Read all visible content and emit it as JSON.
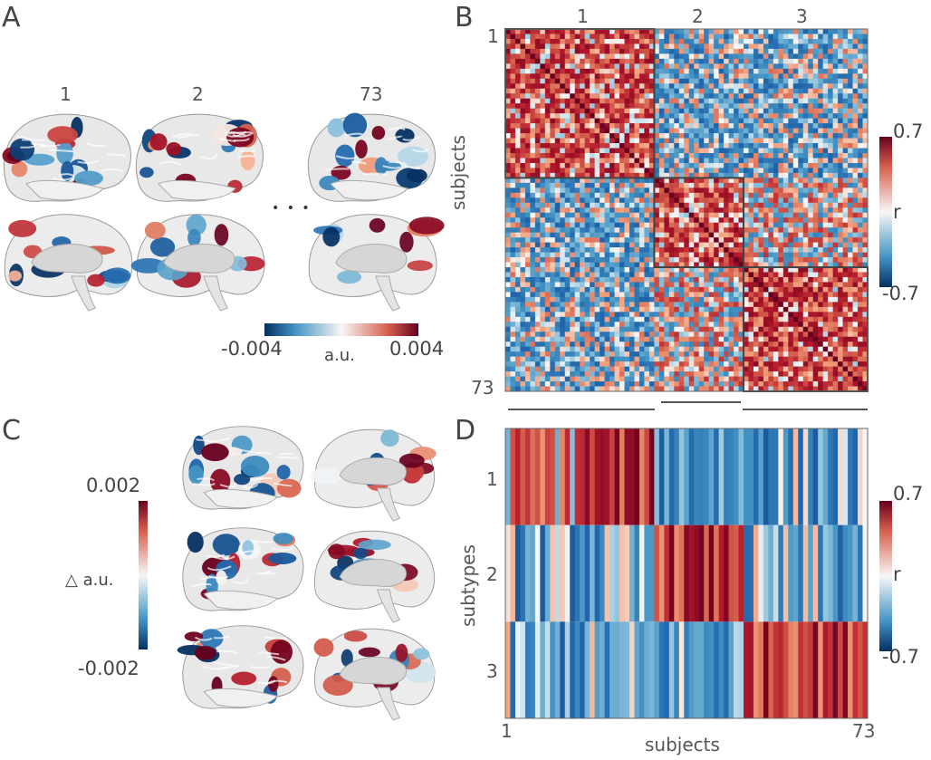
{
  "panel_labels": {
    "a": "A",
    "b": "B",
    "c": "C",
    "d": "D"
  },
  "panel_a": {
    "subject_labels": [
      "1",
      "2",
      "73"
    ],
    "ellipsis": "• • •",
    "colorbar": {
      "min": "-0.004",
      "max": "0.004",
      "unit": "a.u."
    }
  },
  "panel_b": {
    "cluster_labels": [
      "1",
      "2",
      "3"
    ],
    "axis_start": "1",
    "axis_end": "73",
    "ylabel": "subjects",
    "colorbar": {
      "max": "0.7",
      "min": "-0.7",
      "label": "r"
    }
  },
  "panel_c": {
    "colorbar": {
      "max": "0.002",
      "min": "-0.002",
      "label": "△ a.u."
    }
  },
  "panel_d": {
    "ylabel": "subtypes",
    "xlabel": "subjects",
    "x_start": "1",
    "x_end": "73",
    "row_labels": [
      "1",
      "2",
      "3"
    ],
    "colorbar": {
      "max": "0.7",
      "min": "-0.7",
      "label": "r"
    }
  },
  "colors": {
    "dark_red": "#67001f",
    "red": "#d6604d",
    "light": "#f7f7f7",
    "blue": "#4393c3",
    "dark_blue": "#053061"
  },
  "chart_data": [
    {
      "type": "heatmap",
      "description_role": "panel B subject-by-subject correlation matrix",
      "n_subjects": 73,
      "clusters": [
        {
          "name": "1",
          "start": 1,
          "end": 30
        },
        {
          "name": "2",
          "start": 31,
          "end": 48
        },
        {
          "name": "3",
          "start": 49,
          "end": 73
        }
      ],
      "value_range": [
        -0.7,
        0.7
      ]
    },
    {
      "type": "heatmap",
      "description_role": "panel D subtype-by-subject correlation",
      "rows": [
        "1",
        "2",
        "3"
      ],
      "n_subjects": 73,
      "value_range": [
        -0.7,
        0.7
      ]
    }
  ]
}
